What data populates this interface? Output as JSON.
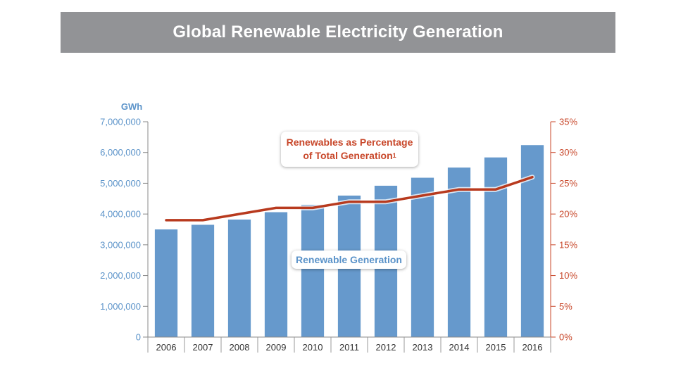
{
  "title": "Global Renewable Electricity Generation",
  "chart_data": {
    "type": "bar",
    "title": "Global Renewable Electricity Generation",
    "categories": [
      "2006",
      "2007",
      "2008",
      "2009",
      "2010",
      "2011",
      "2012",
      "2013",
      "2014",
      "2015",
      "2016"
    ],
    "series": [
      {
        "name": "Renewable Generation",
        "type": "bar",
        "axis": "left",
        "values": [
          3500000,
          3650000,
          3820000,
          4060000,
          4300000,
          4600000,
          4920000,
          5180000,
          5510000,
          5840000,
          6240000
        ]
      },
      {
        "name": "Renewables as Percentage of Total Generation",
        "footnote": "1",
        "type": "line",
        "axis": "right",
        "values": [
          19,
          19,
          20,
          21,
          21,
          22,
          22,
          23,
          24,
          24,
          26
        ]
      }
    ],
    "y_left": {
      "unit": "GWh",
      "range": [
        0,
        7000000
      ],
      "ticks": [
        "0",
        "1,000,000",
        "2,000,000",
        "3,000,000",
        "4,000,000",
        "5,000,000",
        "6,000,000",
        "7,000,000"
      ]
    },
    "y_right": {
      "range": [
        0,
        35
      ],
      "ticks": [
        "0%",
        "5%",
        "10%",
        "15%",
        "20%",
        "25%",
        "30%",
        "35%"
      ]
    },
    "grid": false,
    "colors": {
      "bars": "#6699cc",
      "line": "#b83a1e",
      "left_axis_text": "#5b93c9",
      "right_axis_text": "#c8472a",
      "title_bar": "#929396"
    }
  }
}
